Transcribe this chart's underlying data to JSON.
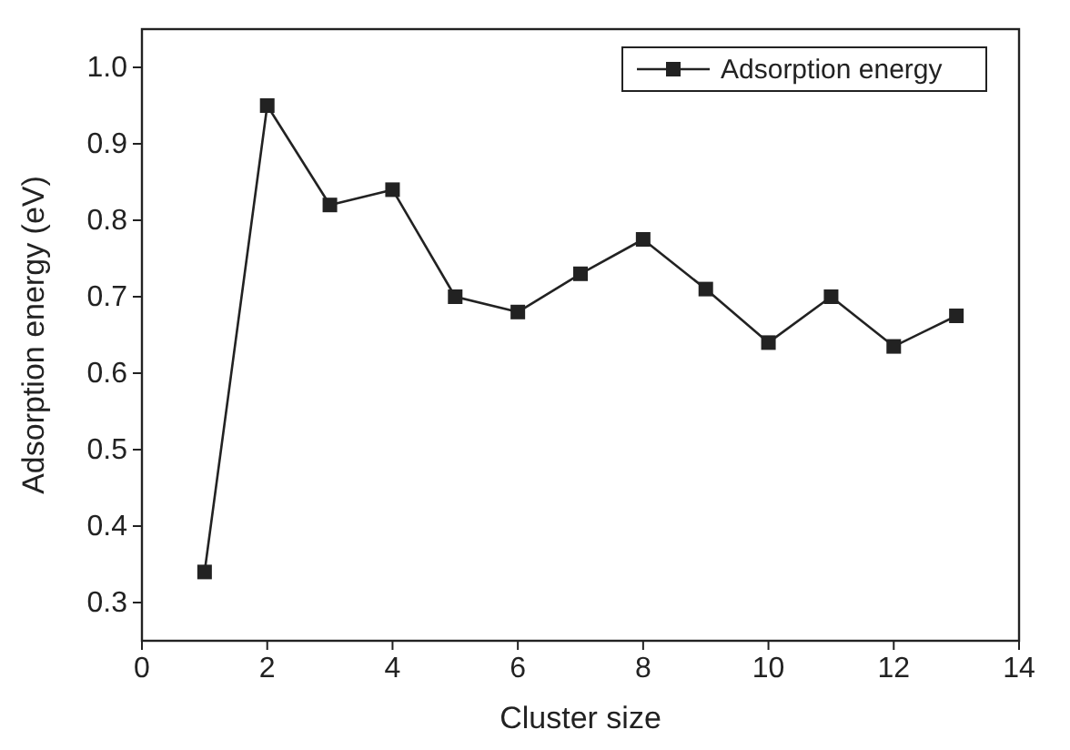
{
  "chart_data": {
    "type": "line",
    "xlabel": "Cluster size",
    "ylabel": "Adsorption energy (eV)",
    "x": [
      1,
      2,
      3,
      4,
      5,
      6,
      7,
      8,
      9,
      10,
      11,
      12,
      13
    ],
    "series": [
      {
        "name": "Adsorption energy",
        "color": "#222222",
        "values": [
          0.34,
          0.95,
          0.82,
          0.84,
          0.7,
          0.68,
          0.73,
          0.775,
          0.71,
          0.64,
          0.7,
          0.635,
          0.675
        ]
      }
    ],
    "xlim": [
      0,
      14
    ],
    "xticks": [
      0,
      2,
      4,
      6,
      8,
      10,
      12,
      14
    ],
    "ylim": [
      0.25,
      1.05
    ],
    "yticks": [
      0.3,
      0.4,
      0.5,
      0.6,
      0.7,
      0.8,
      0.9,
      {
        "value": 1.0,
        "label": "1.0"
      }
    ],
    "marker": "square",
    "line_style": "solid",
    "legend": "top right",
    "grid": false
  }
}
